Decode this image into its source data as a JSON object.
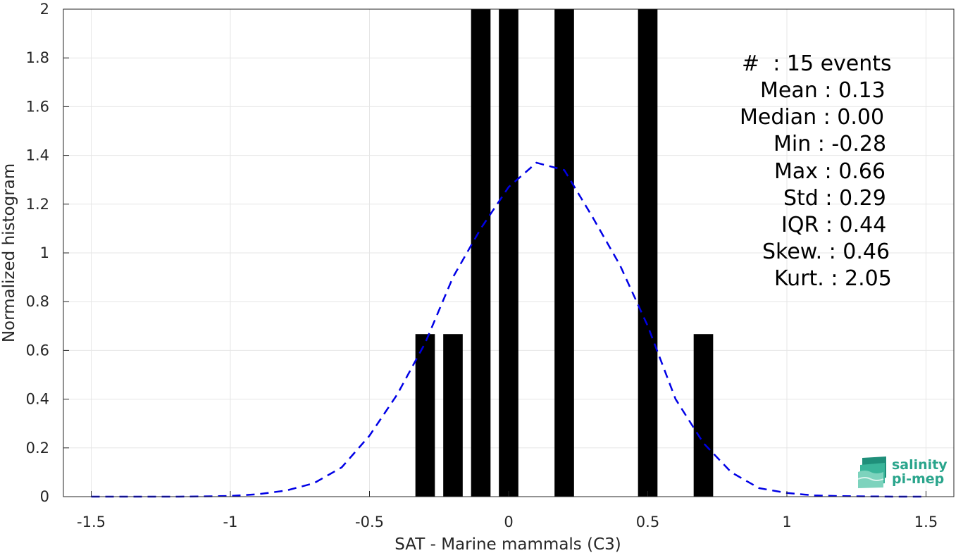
{
  "chart_data": {
    "type": "bar",
    "xlabel": "SAT - Marine mammals (C3)",
    "ylabel": "Normalized histogram",
    "xlim": [
      -1.6,
      1.6
    ],
    "ylim": [
      0,
      2
    ],
    "grid": true,
    "x_ticks": [
      "-1.5",
      "-1",
      "-0.5",
      "0",
      "0.5",
      "1",
      "1.5"
    ],
    "y_ticks": [
      "0",
      "0.2",
      "0.4",
      "0.6",
      "0.8",
      "1",
      "1.2",
      "1.4",
      "1.6",
      "1.8",
      "2"
    ],
    "bar_color": "#000000",
    "bar_width": 0.07,
    "bars": [
      {
        "x": -0.3,
        "value": 0.667
      },
      {
        "x": -0.2,
        "value": 0.667
      },
      {
        "x": -0.1,
        "value": 2.0
      },
      {
        "x": 0.0,
        "value": 2.0
      },
      {
        "x": 0.2,
        "value": 2.0
      },
      {
        "x": 0.5,
        "value": 2.0
      },
      {
        "x": 0.7,
        "value": 0.667
      }
    ],
    "fit_curve": {
      "style": "dashed",
      "color": "#0000e6",
      "x": [
        -1.5,
        -1.4,
        -1.3,
        -1.2,
        -1.1,
        -1.0,
        -0.9,
        -0.8,
        -0.7,
        -0.6,
        -0.5,
        -0.4,
        -0.3,
        -0.2,
        -0.1,
        0.0,
        0.1,
        0.2,
        0.3,
        0.4,
        0.5,
        0.6,
        0.7,
        0.8,
        0.9,
        1.0,
        1.1,
        1.2,
        1.3,
        1.4,
        1.5
      ],
      "y": [
        0.0,
        0.0,
        0.0,
        0.0,
        0.001,
        0.003,
        0.01,
        0.025,
        0.055,
        0.12,
        0.25,
        0.42,
        0.63,
        0.9,
        1.1,
        1.27,
        1.37,
        1.34,
        1.15,
        0.95,
        0.7,
        0.4,
        0.22,
        0.1,
        0.035,
        0.015,
        0.005,
        0.002,
        0.001,
        0.0,
        0.0
      ]
    },
    "annotations": [
      "#  : 15 events",
      "Mean : 0.13",
      "Median : 0.00",
      "Min : -0.28",
      "Max : 0.66",
      "Std : 0.29",
      "IQR : 0.44",
      "Skew. : 0.46",
      "Kurt. : 2.05"
    ]
  },
  "logo": {
    "line1": "salinity",
    "line2": "pi-mep",
    "color": "#2aa58c"
  }
}
